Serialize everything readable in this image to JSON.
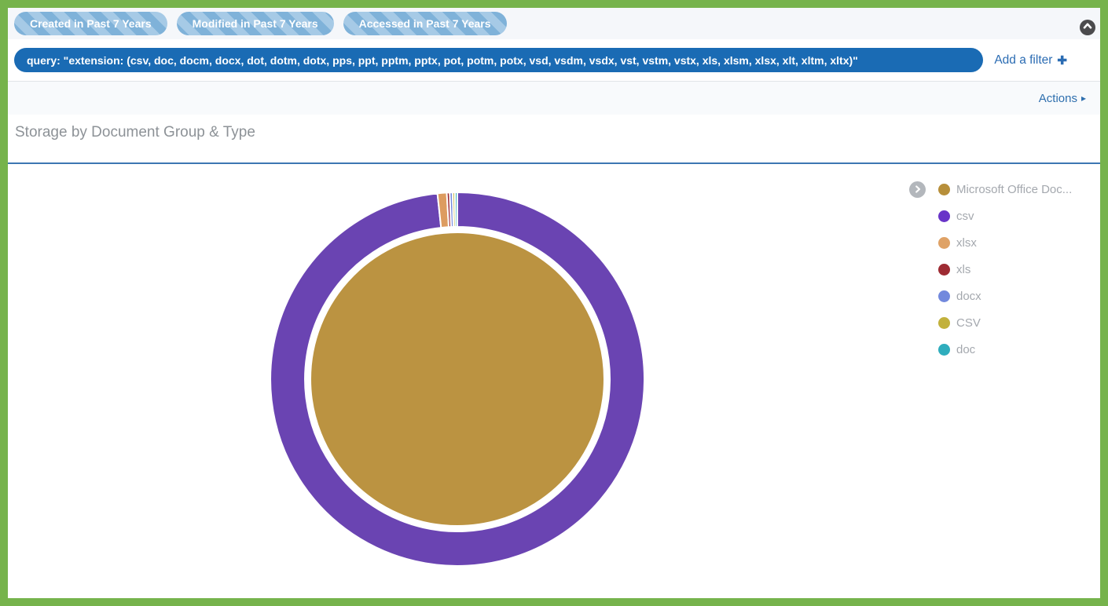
{
  "window": {
    "border_color": "#76b34c"
  },
  "filter_bar": {
    "pills": [
      {
        "label": "Created in Past 7 Years"
      },
      {
        "label": "Modified in Past 7 Years"
      },
      {
        "label": "Accessed in Past 7 Years"
      }
    ],
    "query_pill": {
      "label": "query: \"extension: (csv, doc, docm, docx, dot, dotm, dotx, pps, ppt, pptm, pptx, pot, potm, potx, vsd, vsdm, vsdx, vst, vstm, vstx, xls, xlsm, xlsx, xlt, xltm, xltx)\""
    },
    "add_filter": {
      "label": "Add a filter",
      "plus_icon": "✚"
    },
    "collapse_icon": "chevron-up"
  },
  "actions_bar": {
    "label": "Actions",
    "arrow_icon": "▸"
  },
  "panel": {
    "title": "Storage by Document Group & Type"
  },
  "chart_data": {
    "type": "pie",
    "subtype": "sunburst-donut",
    "title": "Storage by Document Group & Type",
    "legend_position": "right",
    "inner_ring": [
      {
        "name": "Microsoft Office Doc...",
        "color": "#bb9341",
        "share_pct": 100
      }
    ],
    "outer_ring": [
      {
        "name": "csv",
        "color": "#6a44b2",
        "share_pct": 98.3
      },
      {
        "name": "xlsx",
        "color": "#dd9c60",
        "share_pct": 0.8
      },
      {
        "name": "xls",
        "color": "#9c2833",
        "share_pct": 0.25
      },
      {
        "name": "docx",
        "color": "#7289dd",
        "share_pct": 0.25
      },
      {
        "name": "CSV",
        "color": "#c2b13c",
        "share_pct": 0.2
      },
      {
        "name": "doc",
        "color": "#2fadbd",
        "share_pct": 0.2
      }
    ],
    "legend": [
      {
        "label": "Microsoft Office Doc...",
        "color": "#b78f3a",
        "expandable": true
      },
      {
        "label": "csv",
        "color": "#6935c8"
      },
      {
        "label": "xlsx",
        "color": "#dfa266"
      },
      {
        "label": "xls",
        "color": "#9e2b33"
      },
      {
        "label": "docx",
        "color": "#7289dd"
      },
      {
        "label": "CSV",
        "color": "#c2b13c"
      },
      {
        "label": "doc",
        "color": "#2fadbd"
      }
    ]
  }
}
